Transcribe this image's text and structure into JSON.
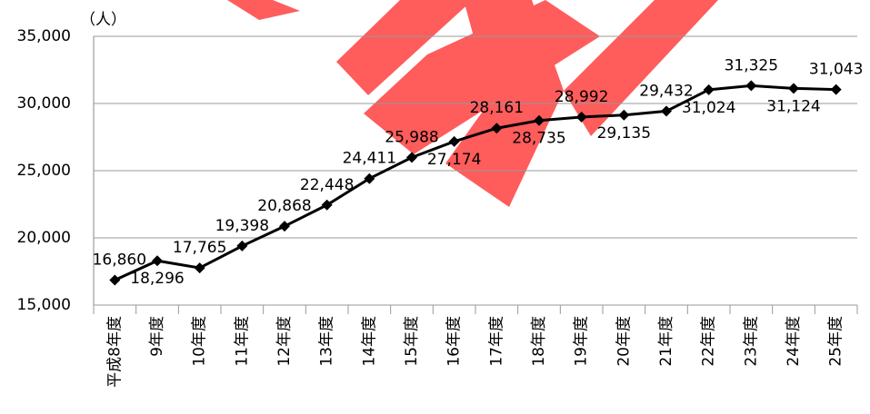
{
  "chart_data": {
    "type": "line",
    "unit_label": "（人）",
    "categories": [
      "平成8年度",
      "9年度",
      "10年度",
      "11年度",
      "12年度",
      "13年度",
      "14年度",
      "15年度",
      "16年度",
      "17年度",
      "18年度",
      "19年度",
      "20年度",
      "21年度",
      "22年度",
      "23年度",
      "24年度",
      "25年度"
    ],
    "values": [
      16860,
      18296,
      17765,
      19398,
      20868,
      22448,
      24411,
      25988,
      27174,
      28161,
      28735,
      28992,
      29135,
      29432,
      31024,
      31325,
      31124,
      31043
    ],
    "value_labels": [
      "16,860",
      "18,296",
      "17,765",
      "19,398",
      "20,868",
      "22,448",
      "24,411",
      "25,988",
      "27,174",
      "28,161",
      "28,735",
      "28,992",
      "29,135",
      "29,432",
      "31,024",
      "31,325",
      "31,124",
      "31,043"
    ],
    "color": "#000000",
    "ylim": [
      15000,
      35000
    ],
    "yticks": [
      {
        "value": 15000,
        "label": "15,000"
      },
      {
        "value": 20000,
        "label": "20,000"
      },
      {
        "value": 25000,
        "label": "25,000"
      },
      {
        "value": 30000,
        "label": "30,000"
      },
      {
        "value": 35000,
        "label": "35,000"
      }
    ],
    "grid": true
  }
}
